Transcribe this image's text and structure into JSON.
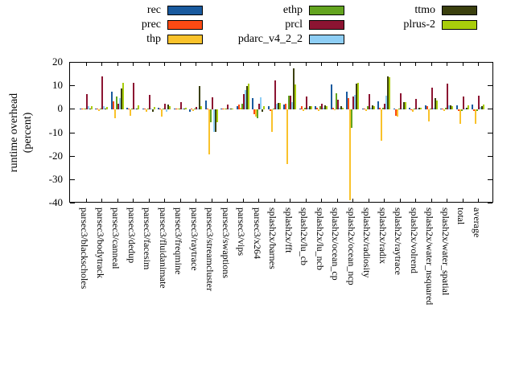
{
  "y_axis": {
    "lines": [
      "runtime overhead",
      "(percent)"
    ],
    "ticks": [
      20,
      10,
      0,
      -10,
      -20,
      -30,
      -40
    ]
  },
  "legend": {
    "columns": [
      [
        "rec",
        "prec",
        "thp"
      ],
      [
        "ethp",
        "prcl",
        "pdarc_v4_2_2"
      ],
      [
        "ttmo",
        "plrus-2"
      ]
    ]
  },
  "chart_data": {
    "type": "bar",
    "title": "",
    "xlabel": "",
    "ylabel": "runtime overhead (percent)",
    "ylim": [
      -40,
      20
    ],
    "grid": false,
    "legend_position": "top",
    "categories": [
      "parsec3/blackscholes",
      "parsec3/bodytrack",
      "parsec3/canneal",
      "parsec3/dedup",
      "parsec3/facesim",
      "parsec3/fluidanimate",
      "parsec3/freqmine",
      "parsec3/raytrace",
      "parsec3/streamcluster",
      "parsec3/swaptions",
      "parsec3/vips",
      "parsec3/x264",
      "splash2x/barnes",
      "splash2x/fft",
      "splash2x/lu_cb",
      "splash2x/lu_ncb",
      "splash2x/ocean_cp",
      "splash2x/ocean_ncp",
      "splash2x/radiosity",
      "splash2x/radix",
      "splash2x/raytrace",
      "splash2x/volrend",
      "splash2x/water_nsquared",
      "splash2x/water_spatial",
      "total",
      "average"
    ],
    "series": [
      {
        "name": "rec",
        "color": "#195a9e",
        "values": [
          0.5,
          0.3,
          7.5,
          0.9,
          0.3,
          0.9,
          0.5,
          -0.9,
          4.0,
          0.3,
          1.5,
          4.9,
          1.5,
          2.1,
          0.5,
          1.5,
          10.7,
          7.6,
          0.3,
          3.5,
          0.2,
          0.9,
          1.7,
          0.3,
          1.7,
          2.1
        ]
      },
      {
        "name": "prec",
        "color": "#fb4a14",
        "values": [
          0.5,
          0.3,
          3.4,
          0.3,
          0.3,
          0.3,
          0.3,
          0.3,
          0.5,
          0.2,
          2.1,
          -1.9,
          -0.5,
          2.6,
          1.5,
          0.9,
          0.9,
          4.9,
          0.3,
          0.9,
          -2.5,
          -0.3,
          1.4,
          0.3,
          -0.5,
          -0.5
        ]
      },
      {
        "name": "thp",
        "color": "#f9c22b",
        "values": [
          0.5,
          -0.5,
          -3.7,
          -2.5,
          -1.0,
          -3.1,
          0.3,
          -0.5,
          -19.0,
          0.2,
          0.9,
          -3.1,
          -9.4,
          -23.2,
          -0.5,
          -0.5,
          -0.3,
          -38.7,
          -0.5,
          -13.4,
          -3.1,
          -1.0,
          -5.2,
          -0.5,
          -6.2,
          -6.0
        ]
      },
      {
        "name": "ethp",
        "color": "#63a41f",
        "values": [
          0.5,
          0.3,
          5.5,
          0.3,
          0.5,
          0.3,
          0.5,
          0.5,
          -5.4,
          0.3,
          2.6,
          -3.7,
          0.5,
          6.1,
          0.9,
          1.5,
          6.9,
          -7.7,
          1.5,
          0.9,
          0.3,
          0.3,
          0.5,
          0.9,
          -0.5,
          -0.5
        ]
      },
      {
        "name": "prcl",
        "color": "#8c1432",
        "values": [
          6.7,
          14.2,
          2.6,
          11.6,
          6.4,
          2.6,
          3.2,
          1.0,
          5.2,
          2.1,
          6.7,
          2.6,
          12.4,
          5.9,
          5.5,
          2.6,
          4.4,
          5.7,
          6.7,
          2.6,
          7.0,
          4.7,
          9.3,
          11.0,
          5.7,
          6.1
        ]
      },
      {
        "name": "pdarc_v4_2_2",
        "color": "#8ecef5",
        "values": [
          1.4,
          1.4,
          4.9,
          0.5,
          0.3,
          -1.0,
          0.5,
          0.5,
          -9.4,
          0.3,
          8.4,
          5.3,
          2.6,
          3.2,
          0.9,
          0.9,
          0.9,
          6.4,
          0.9,
          6.1,
          0.3,
          0.3,
          0.9,
          1.9,
          0.5,
          1.0
        ]
      },
      {
        "name": "ttmo",
        "color": "#3b400e",
        "values": [
          0.5,
          0.3,
          9.0,
          0.5,
          -1.0,
          2.1,
          0.5,
          10.1,
          -9.4,
          0.3,
          10.1,
          -1.0,
          3.0,
          17.6,
          1.5,
          1.9,
          1.5,
          11.0,
          1.9,
          14.1,
          3.2,
          0.9,
          4.9,
          1.9,
          0.9,
          1.4
        ]
      },
      {
        "name": "plrus-2",
        "color": "#a9cd0b",
        "values": [
          1.4,
          1.0,
          11.4,
          2.0,
          1.0,
          1.5,
          0.9,
          1.5,
          -5.4,
          0.5,
          11.0,
          1.5,
          3.0,
          10.7,
          1.5,
          1.5,
          0.9,
          11.5,
          1.5,
          13.8,
          3.2,
          0.9,
          4.0,
          1.4,
          1.7,
          2.1
        ]
      }
    ]
  }
}
